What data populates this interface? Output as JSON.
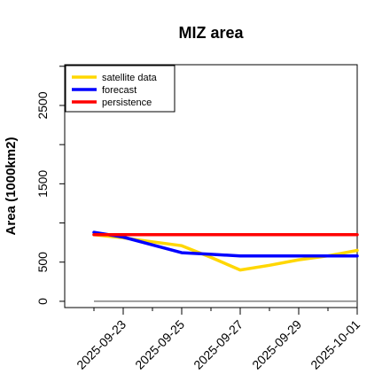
{
  "chart_data": {
    "type": "line",
    "title": "MIZ area",
    "xlabel": "",
    "ylabel": "Area (1000km2)",
    "x_tick_labels": [
      {
        "label": "2025-09-23",
        "color": "#228B22"
      },
      {
        "label": "2025-09-25",
        "color": "#000000"
      },
      {
        "label": "2025-09-27",
        "color": "#000000"
      },
      {
        "label": "2025-09-29",
        "color": "#000000"
      },
      {
        "label": "2025-10-01",
        "color": "#000000"
      }
    ],
    "x_days": [
      "2025-09-22",
      "2025-09-23",
      "2025-09-24",
      "2025-09-25",
      "2025-09-26",
      "2025-09-27",
      "2025-09-28",
      "2025-09-29",
      "2025-09-30",
      "2025-10-01"
    ],
    "xlim": [
      "2025-09-21",
      "2025-10-01"
    ],
    "y_ticks": [
      0,
      500,
      1500,
      2500
    ],
    "ylim": [
      -80,
      3020
    ],
    "reference_line": {
      "value": 0,
      "color": "#808080",
      "from": "2025-09-22",
      "to": "2025-10-01"
    },
    "series": [
      {
        "name": "satellite data",
        "color": "#FFD700",
        "values": [
          850,
          810,
          760,
          710,
          560,
          400,
          460,
          530,
          580,
          650
        ]
      },
      {
        "name": "forecast",
        "color": "#0000FF",
        "values": [
          880,
          820,
          720,
          620,
          600,
          580,
          578,
          578,
          580,
          580
        ]
      },
      {
        "name": "persistence",
        "color": "#FF0000",
        "values": [
          850,
          850,
          850,
          850,
          850,
          850,
          850,
          850,
          850,
          850
        ]
      }
    ],
    "legend_position": "top-left",
    "grid": false
  }
}
